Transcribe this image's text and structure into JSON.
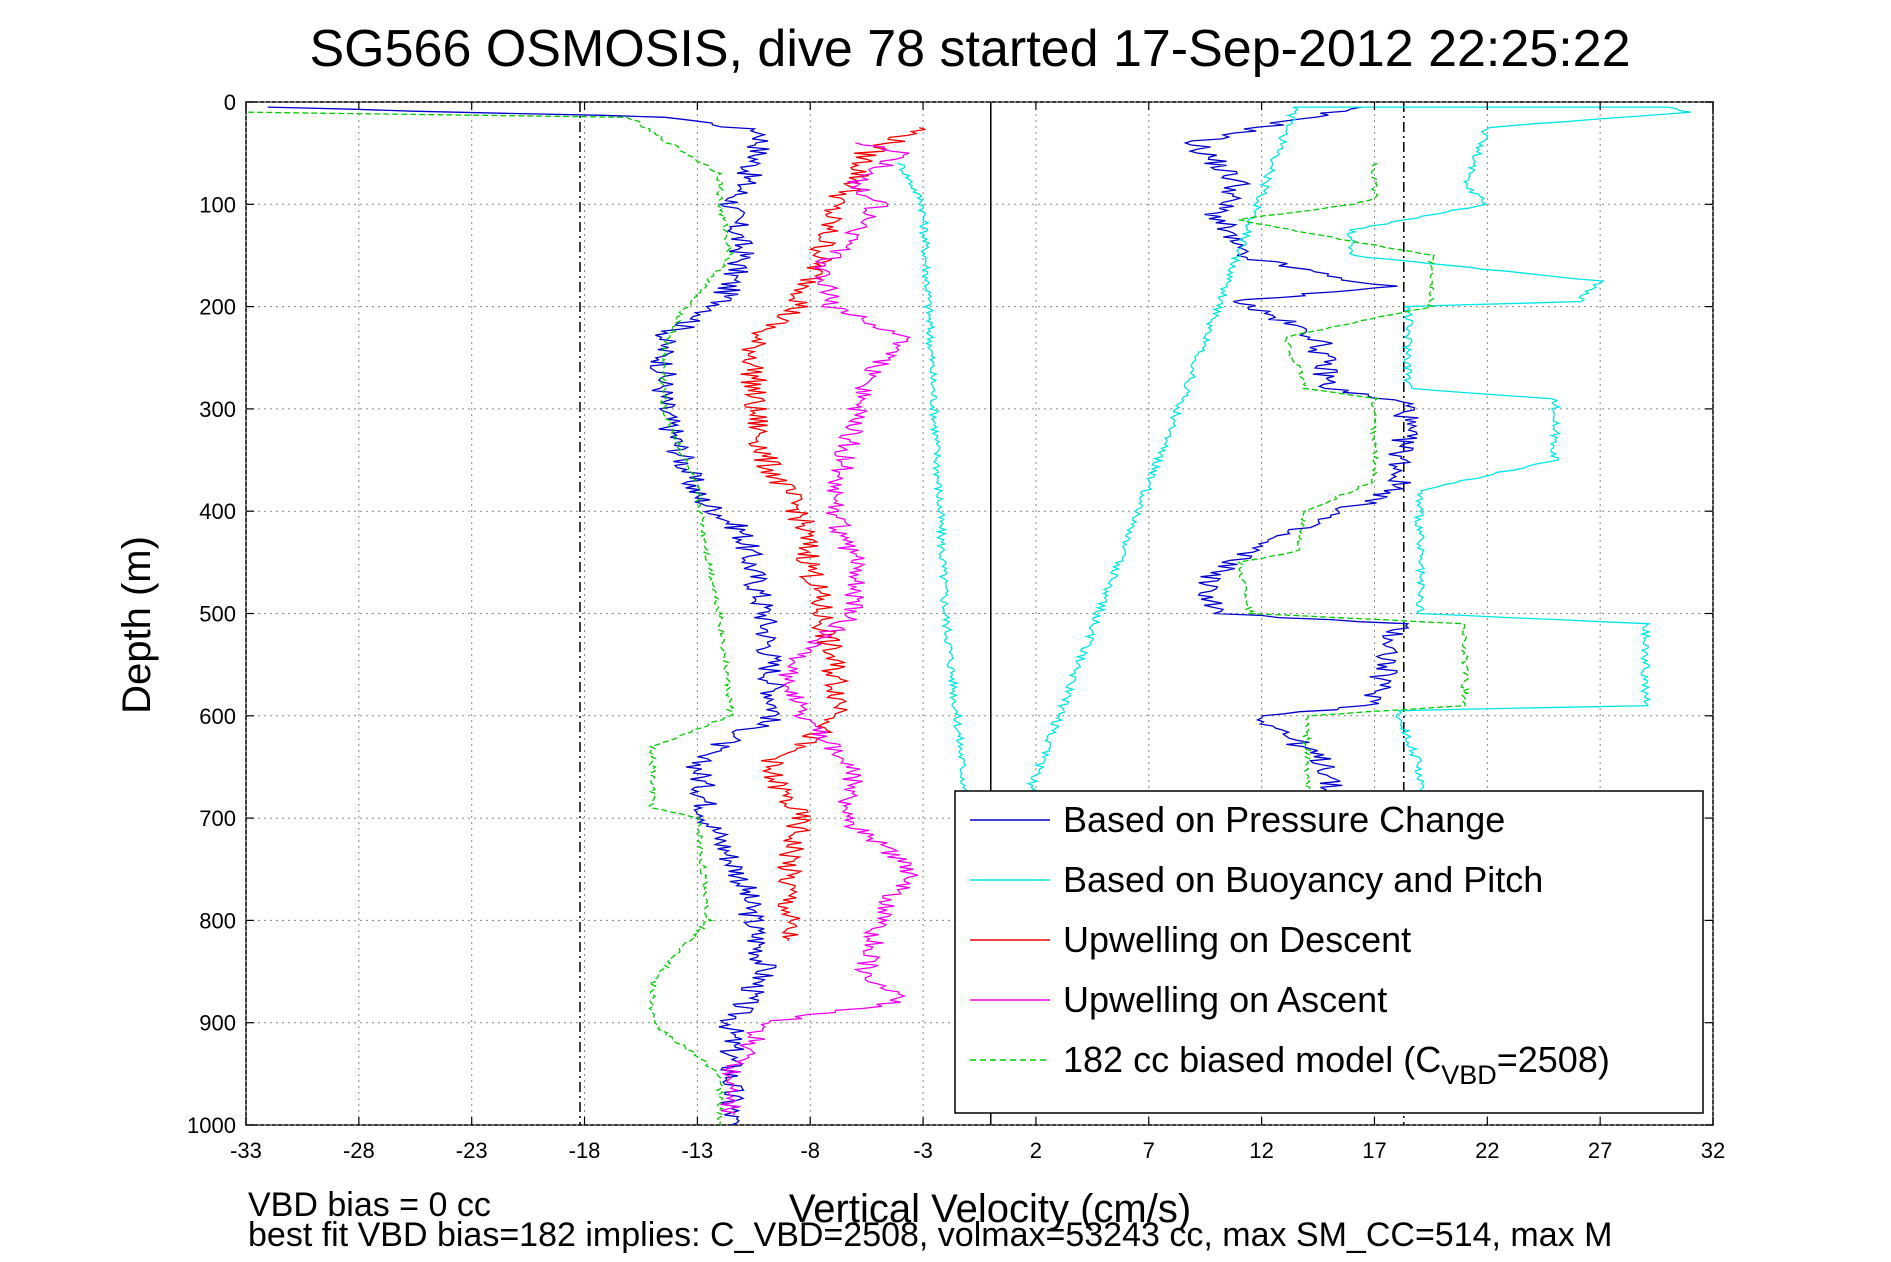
{
  "chart_data": {
    "type": "line",
    "title": "SG566 OSMOSIS, dive 78 started 17-Sep-2012 22:25:22",
    "xlabel": "Vertical Velocity (cm/s)",
    "ylabel": "Depth (m)",
    "xlim": [
      -33,
      32
    ],
    "ylim": [
      0,
      1000
    ],
    "y_reversed": true,
    "grid": true,
    "x_ticks": [
      "-33",
      "-28",
      "-23",
      "-18",
      "-13",
      "-8",
      "-3",
      "2",
      "7",
      "12",
      "17",
      "22",
      "27",
      "32"
    ],
    "y_ticks": [
      "0",
      "100",
      "200",
      "300",
      "400",
      "500",
      "600",
      "700",
      "800",
      "900",
      "1000"
    ],
    "reference_lines": [
      {
        "x": -18.2,
        "style": "dash-dot",
        "color": "#000000"
      },
      {
        "x": 0,
        "style": "solid",
        "color": "#000000"
      },
      {
        "x": 18.3,
        "style": "dash-dot",
        "color": "#000000"
      }
    ],
    "legend_position": "bottom-right",
    "notes": [
      "VBD bias = 0 cc",
      "best fit VBD bias=182 implies: C_VBD=2508, volmax=53243 cc, max SM_CC=514, max M"
    ],
    "series": [
      {
        "name": "Based on Pressure Change",
        "color": "#0000cc",
        "style": "solid",
        "points": [
          [
            -32.5,
            5
          ],
          [
            -14,
            15
          ],
          [
            -10,
            30
          ],
          [
            -10.5,
            60
          ],
          [
            -11,
            85
          ],
          [
            -11.5,
            100
          ],
          [
            -11,
            150
          ],
          [
            -12,
            200
          ],
          [
            -14.5,
            230
          ],
          [
            -14.5,
            300
          ],
          [
            -13,
            385
          ],
          [
            -11,
            420
          ],
          [
            -10,
            500
          ],
          [
            -9.5,
            600
          ],
          [
            -13,
            640
          ],
          [
            -12.5,
            700
          ],
          [
            -11,
            760
          ],
          [
            -10,
            850
          ],
          [
            -11.5,
            900
          ],
          [
            -11.5,
            1000
          ]
        ],
        "points_b": [
          [
            16,
            5
          ],
          [
            9,
            40
          ],
          [
            11,
            80
          ],
          [
            10,
            110
          ],
          [
            11,
            150
          ],
          [
            15,
            170
          ],
          [
            17.5,
            180
          ],
          [
            11,
            195
          ],
          [
            14.5,
            230
          ],
          [
            15,
            280
          ],
          [
            18.5,
            295
          ],
          [
            18,
            380
          ],
          [
            15.5,
            400
          ],
          [
            12,
            430
          ],
          [
            9.5,
            470
          ],
          [
            10,
            500
          ],
          [
            18,
            510
          ],
          [
            17,
            590
          ],
          [
            12,
            600
          ],
          [
            15,
            650
          ],
          [
            15,
            700
          ]
        ]
      },
      {
        "name": "Based on Buoyancy and Pitch",
        "color": "#00e5e5",
        "style": "solid",
        "points": [
          [
            -4,
            60
          ],
          [
            -3,
            100
          ],
          [
            -2.5,
            300
          ],
          [
            -2,
            500
          ],
          [
            -1,
            700
          ],
          [
            -0.5,
            800
          ],
          [
            13.5,
            5
          ],
          [
            30,
            5
          ],
          [
            31,
            10
          ],
          [
            22,
            25
          ],
          [
            21,
            80
          ],
          [
            22,
            100
          ],
          [
            16,
            125
          ],
          [
            16,
            150
          ],
          [
            27,
            175
          ],
          [
            26,
            195
          ],
          [
            18.5,
            200
          ],
          [
            18.5,
            280
          ],
          [
            25,
            290
          ],
          [
            25,
            350
          ],
          [
            19,
            380
          ],
          [
            19,
            500
          ],
          [
            29,
            510
          ],
          [
            29,
            590
          ],
          [
            18,
            595
          ],
          [
            19,
            650
          ],
          [
            19,
            700
          ]
        ]
      },
      {
        "name": "Upwelling on Descent",
        "color": "#ee0000",
        "style": "solid",
        "points": [
          [
            -3,
            25
          ],
          [
            -5.5,
            50
          ],
          [
            -6,
            80
          ],
          [
            -7,
            100
          ],
          [
            -7.5,
            150
          ],
          [
            -8.5,
            200
          ],
          [
            -10.5,
            230
          ],
          [
            -10.5,
            300
          ],
          [
            -10,
            350
          ],
          [
            -8.5,
            400
          ],
          [
            -8,
            450
          ],
          [
            -7.5,
            500
          ],
          [
            -6.5,
            600
          ],
          [
            -10,
            650
          ],
          [
            -8.5,
            700
          ],
          [
            -9,
            750
          ],
          [
            -9,
            820
          ]
        ]
      },
      {
        "name": "Upwelling on Ascent",
        "color": "#ee00ee",
        "style": "solid",
        "points": [
          [
            -11.5,
            990
          ],
          [
            -11.5,
            950
          ],
          [
            -10,
            900
          ],
          [
            -4,
            880
          ],
          [
            -5.5,
            850
          ],
          [
            -5,
            800
          ],
          [
            -3.5,
            750
          ],
          [
            -6.5,
            700
          ],
          [
            -6,
            650
          ],
          [
            -8.5,
            600
          ],
          [
            -9,
            550
          ],
          [
            -6,
            500
          ],
          [
            -6,
            450
          ],
          [
            -7,
            400
          ],
          [
            -6.5,
            350
          ],
          [
            -5.5,
            270
          ],
          [
            -4,
            230
          ],
          [
            -7,
            200
          ],
          [
            -7.5,
            160
          ],
          [
            -6,
            130
          ],
          [
            -5,
            100
          ],
          [
            -6,
            80
          ],
          [
            -4,
            50
          ],
          [
            -6,
            40
          ]
        ]
      },
      {
        "name": "182 cc biased model (C_VBD=2508)",
        "color": "#00cc00",
        "style": "dashed",
        "points": [
          [
            -33,
            10
          ],
          [
            -16,
            15
          ],
          [
            -15,
            30
          ],
          [
            -12,
            70
          ],
          [
            -12,
            100
          ],
          [
            -11.5,
            150
          ],
          [
            -13.5,
            200
          ],
          [
            -14.5,
            240
          ],
          [
            -14.5,
            300
          ],
          [
            -13,
            380
          ],
          [
            -12.5,
            450
          ],
          [
            -12,
            500
          ],
          [
            -11.5,
            600
          ],
          [
            -15,
            630
          ],
          [
            -15,
            690
          ],
          [
            -13,
            700
          ],
          [
            -12.5,
            800
          ],
          [
            -15,
            860
          ],
          [
            -15,
            900
          ],
          [
            -12,
            950
          ],
          [
            -12,
            1000
          ]
        ],
        "points_b": [
          [
            17,
            60
          ],
          [
            17,
            95
          ],
          [
            16,
            100
          ],
          [
            11,
            115
          ],
          [
            14.5,
            130
          ],
          [
            19.5,
            150
          ],
          [
            19.5,
            200
          ],
          [
            13,
            230
          ],
          [
            14,
            280
          ],
          [
            17,
            290
          ],
          [
            17,
            370
          ],
          [
            14,
            400
          ],
          [
            13.5,
            440
          ],
          [
            11,
            450
          ],
          [
            11.5,
            500
          ],
          [
            21,
            510
          ],
          [
            21,
            590
          ],
          [
            14,
            600
          ],
          [
            14,
            660
          ],
          [
            14,
            700
          ]
        ]
      }
    ]
  },
  "legend": {
    "items": [
      {
        "main": "Based on Pressure Change",
        "sub": "",
        "after": ""
      },
      {
        "main": "Based on Buoyancy and Pitch",
        "sub": "",
        "after": ""
      },
      {
        "main": "Upwelling on Descent",
        "sub": "",
        "after": ""
      },
      {
        "main": "Upwelling on Ascent",
        "sub": "",
        "after": ""
      },
      {
        "main": "182 cc biased model (C",
        "sub": "VBD",
        "after": "=2508)"
      }
    ]
  }
}
